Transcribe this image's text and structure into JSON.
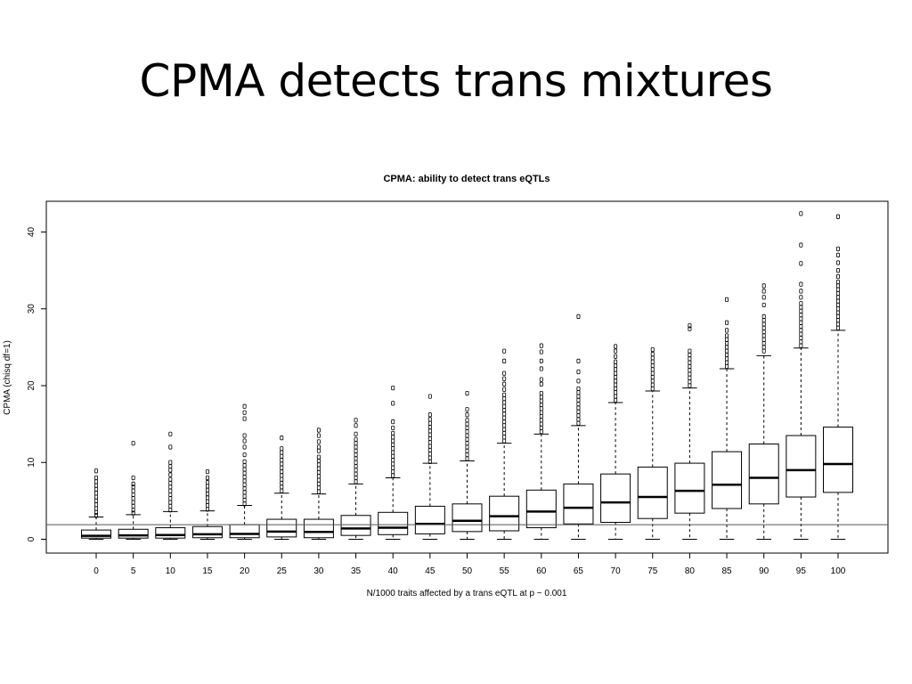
{
  "slide": {
    "title": "CPMA detects trans mixtures"
  },
  "chart_data": {
    "type": "boxplot",
    "title": "CPMA: ability to detect trans eQTLs",
    "xlabel": "N/1000 traits affected by a trans eQTL at p ~ 0.001",
    "ylabel": "CPMA (chisq df=1)",
    "ylim": [
      -1.8,
      44
    ],
    "yticks": [
      0,
      10,
      20,
      30,
      40
    ],
    "grid": false,
    "reference_line_y": 1.9,
    "categories": [
      "0",
      "5",
      "10",
      "15",
      "20",
      "25",
      "30",
      "35",
      "40",
      "45",
      "50",
      "55",
      "60",
      "65",
      "70",
      "75",
      "80",
      "85",
      "90",
      "95",
      "100"
    ],
    "boxes": [
      {
        "x": "0",
        "q1": 0.15,
        "median": 0.45,
        "q3": 1.2,
        "whisker_low": 0,
        "whisker_high": 2.9,
        "outliers": [
          3.1,
          3.5,
          4,
          4.5,
          5,
          5.5,
          6,
          6.5,
          7,
          7.5,
          8,
          8.9
        ]
      },
      {
        "x": "5",
        "q1": 0.15,
        "median": 0.5,
        "q3": 1.3,
        "whisker_low": 0,
        "whisker_high": 3.2,
        "outliers": [
          3.4,
          3.8,
          4.3,
          4.8,
          5.3,
          5.8,
          6.3,
          6.8,
          7.2,
          8,
          12.5
        ]
      },
      {
        "x": "10",
        "q1": 0.15,
        "median": 0.55,
        "q3": 1.5,
        "whisker_low": 0,
        "whisker_high": 3.6,
        "outliers": [
          3.8,
          4.3,
          4.8,
          5.3,
          5.8,
          6.3,
          6.8,
          7.3,
          7.8,
          8.4,
          9,
          9.5,
          10,
          12,
          13.7
        ]
      },
      {
        "x": "15",
        "q1": 0.2,
        "median": 0.65,
        "q3": 1.65,
        "whisker_low": 0,
        "whisker_high": 3.7,
        "outliers": [
          3.9,
          4.4,
          4.9,
          5.4,
          5.9,
          6.4,
          6.9,
          7.4,
          8,
          8.8
        ]
      },
      {
        "x": "20",
        "q1": 0.2,
        "median": 0.7,
        "q3": 1.9,
        "whisker_low": 0,
        "whisker_high": 4.4,
        "outliers": [
          4.6,
          5.1,
          5.6,
          6.1,
          6.6,
          7.1,
          7.6,
          8.1,
          8.6,
          9.1,
          9.6,
          10.1,
          11,
          12,
          12.8,
          13.5,
          15.7,
          16.5,
          17.3
        ]
      },
      {
        "x": "25",
        "q1": 0.3,
        "median": 1.0,
        "q3": 2.6,
        "whisker_low": 0,
        "whisker_high": 6.0,
        "outliers": [
          6.3,
          6.8,
          7.3,
          7.8,
          8.3,
          8.8,
          9.3,
          9.8,
          10.3,
          10.8,
          11.3,
          11.8,
          13.2
        ]
      },
      {
        "x": "30",
        "q1": 0.2,
        "median": 0.95,
        "q3": 2.6,
        "whisker_low": 0,
        "whisker_high": 5.9,
        "outliers": [
          6.2,
          6.7,
          7.2,
          7.7,
          8.2,
          8.7,
          9.2,
          9.7,
          10.2,
          10.7,
          11.5,
          12,
          12.7,
          13.5,
          14.2
        ]
      },
      {
        "x": "35",
        "q1": 0.5,
        "median": 1.4,
        "q3": 3.1,
        "whisker_low": 0,
        "whisker_high": 7.2,
        "outliers": [
          7.5,
          8,
          8.5,
          9,
          9.5,
          10,
          10.5,
          11,
          11.5,
          12,
          12.5,
          13,
          13.7,
          14.8,
          15.5
        ]
      },
      {
        "x": "40",
        "q1": 0.6,
        "median": 1.5,
        "q3": 3.5,
        "whisker_low": 0,
        "whisker_high": 8.0,
        "outliers": [
          8.3,
          8.8,
          9.3,
          9.8,
          10.3,
          10.8,
          11.3,
          11.8,
          12.3,
          12.8,
          13.3,
          13.8,
          14.5,
          15.3,
          17.7,
          19.7
        ]
      },
      {
        "x": "45",
        "q1": 0.7,
        "median": 2.0,
        "q3": 4.3,
        "whisker_low": 0,
        "whisker_high": 9.9,
        "outliers": [
          10.1,
          10.6,
          11.1,
          11.6,
          12.1,
          12.6,
          13.1,
          13.6,
          14.1,
          14.6,
          15.1,
          15.6,
          16.2,
          18.6
        ]
      },
      {
        "x": "50",
        "q1": 1.0,
        "median": 2.4,
        "q3": 4.6,
        "whisker_low": 0,
        "whisker_high": 10.2,
        "outliers": [
          10.5,
          11,
          11.5,
          12,
          12.5,
          13,
          13.5,
          14,
          14.5,
          15,
          15.5,
          16.2,
          16.9,
          19
        ]
      },
      {
        "x": "55",
        "q1": 1.1,
        "median": 3.0,
        "q3": 5.6,
        "whisker_low": 0,
        "whisker_high": 12.5,
        "outliers": [
          12.8,
          13.3,
          13.8,
          14.3,
          14.8,
          15.3,
          15.8,
          16.3,
          16.8,
          17.3,
          17.8,
          18.3,
          18.8,
          19.5,
          20.2,
          20.9,
          21.6,
          23.2,
          24.5
        ]
      },
      {
        "x": "60",
        "q1": 1.5,
        "median": 3.6,
        "q3": 6.4,
        "whisker_low": 0,
        "whisker_high": 13.7,
        "outliers": [
          14,
          14.5,
          15,
          15.5,
          16,
          16.5,
          17,
          17.5,
          18,
          18.5,
          19,
          20.2,
          20.8,
          22.2,
          23.2,
          24.4,
          25.2
        ]
      },
      {
        "x": "65",
        "q1": 2.0,
        "median": 4.1,
        "q3": 7.2,
        "whisker_low": 0,
        "whisker_high": 14.8,
        "outliers": [
          15.1,
          15.6,
          16.1,
          16.6,
          17.1,
          17.6,
          18.1,
          18.6,
          19.1,
          19.6,
          20.6,
          21.8,
          23.2,
          29
        ]
      },
      {
        "x": "70",
        "q1": 2.2,
        "median": 4.8,
        "q3": 8.5,
        "whisker_low": 0,
        "whisker_high": 17.8,
        "outliers": [
          18.1,
          18.6,
          19.1,
          19.6,
          20.1,
          20.6,
          21.1,
          21.6,
          22.1,
          22.6,
          23.1,
          23.8,
          24.5,
          25.1
        ]
      },
      {
        "x": "75",
        "q1": 2.7,
        "median": 5.5,
        "q3": 9.4,
        "whisker_low": 0,
        "whisker_high": 19.3,
        "outliers": [
          19.6,
          20.1,
          20.6,
          21.1,
          21.6,
          22.1,
          22.6,
          23.1,
          23.6,
          24.1,
          24.7
        ]
      },
      {
        "x": "80",
        "q1": 3.4,
        "median": 6.3,
        "q3": 9.9,
        "whisker_low": 0,
        "whisker_high": 19.7,
        "outliers": [
          20,
          20.5,
          21,
          21.5,
          22,
          22.5,
          23,
          23.5,
          24,
          24.5,
          27.4,
          27.8
        ]
      },
      {
        "x": "85",
        "q1": 4.0,
        "median": 7.1,
        "q3": 11.4,
        "whisker_low": 0,
        "whisker_high": 22.2,
        "outliers": [
          22.5,
          23,
          23.5,
          24,
          24.5,
          25,
          25.5,
          26,
          26.5,
          27.2,
          28.2,
          31.2
        ]
      },
      {
        "x": "90",
        "q1": 4.6,
        "median": 8.0,
        "q3": 12.4,
        "whisker_low": 0,
        "whisker_high": 23.9,
        "outliers": [
          24.5,
          25,
          25.5,
          26,
          26.5,
          27,
          27.5,
          28,
          28.5,
          29,
          30.5,
          31.5,
          32.3,
          33
        ]
      },
      {
        "x": "95",
        "q1": 5.5,
        "median": 9.0,
        "q3": 13.5,
        "whisker_low": 0,
        "whisker_high": 24.9,
        "outliers": [
          25.2,
          25.7,
          26.2,
          26.7,
          27.2,
          27.7,
          28.2,
          28.7,
          29.2,
          29.7,
          30.2,
          30.7,
          31.5,
          32.3,
          33.2,
          35.9,
          38.3,
          42.4
        ]
      },
      {
        "x": "100",
        "q1": 6.1,
        "median": 9.8,
        "q3": 14.6,
        "whisker_low": 0,
        "whisker_high": 27.2,
        "outliers": [
          27.5,
          28,
          28.5,
          29,
          29.5,
          30,
          30.5,
          31,
          31.5,
          32,
          32.5,
          33,
          33.5,
          34.2,
          35,
          36,
          37,
          37.8,
          42
        ]
      }
    ]
  }
}
